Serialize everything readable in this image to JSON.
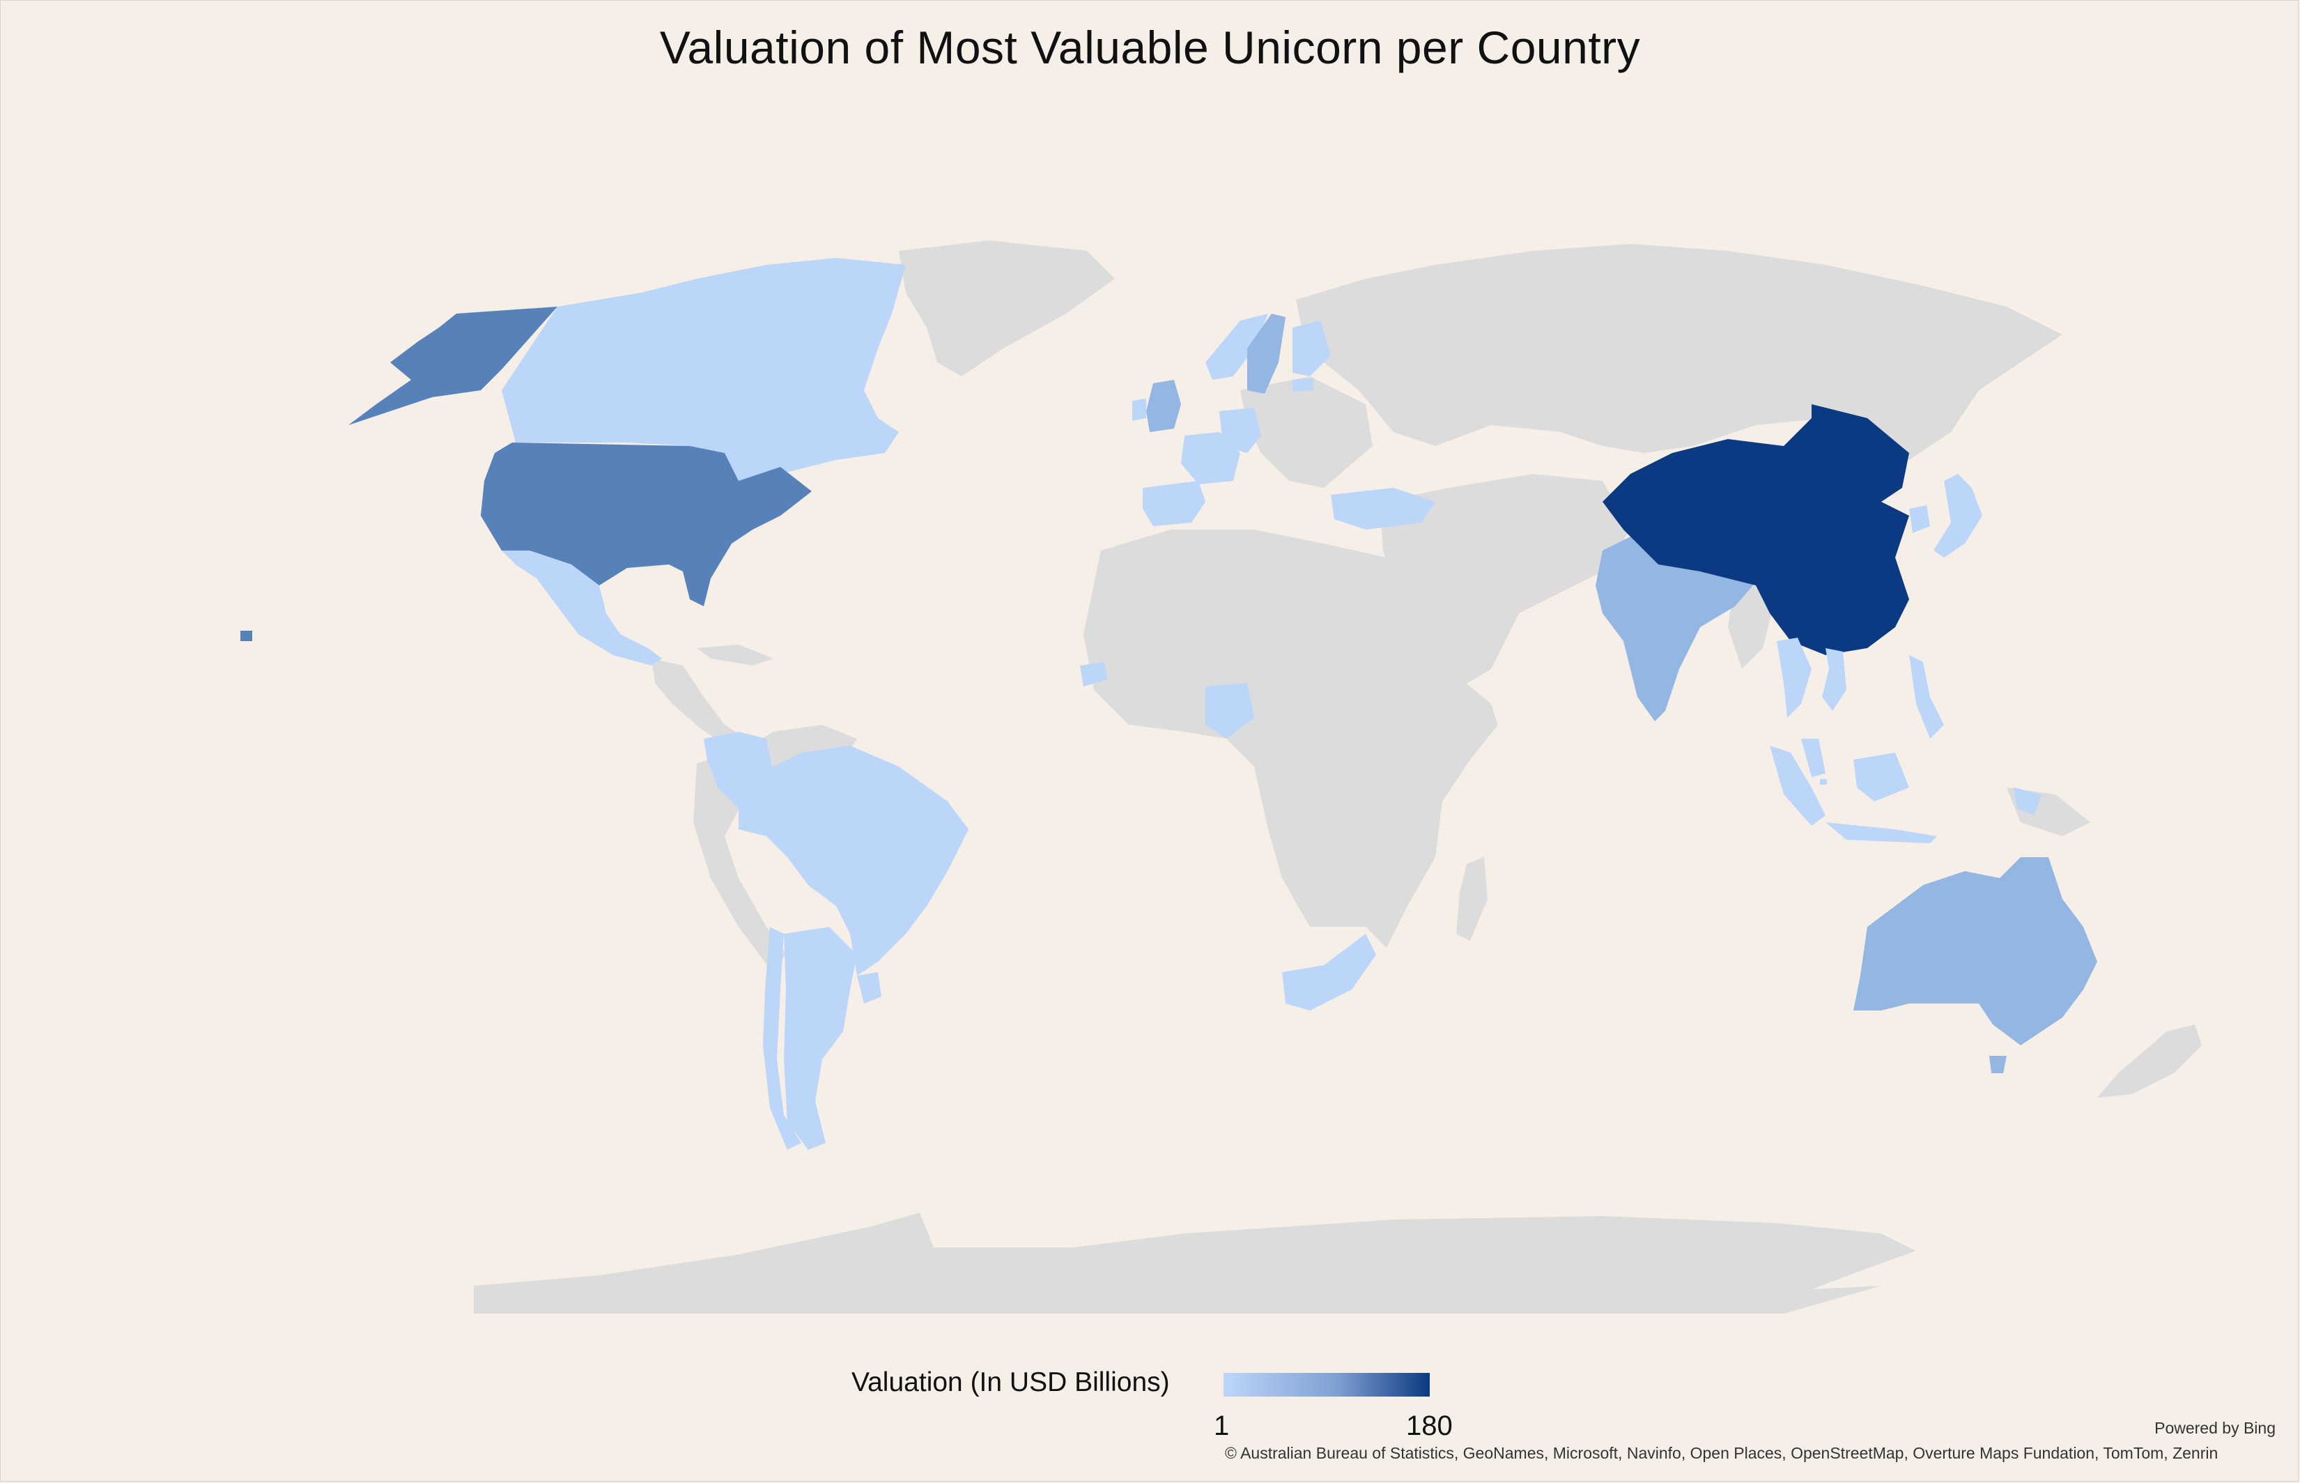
{
  "title": "Valuation of Most Valuable Unicorn per Country",
  "legend": {
    "label": "Valuation (In USD Billions)",
    "min": "1",
    "max": "180",
    "color_low": "#bcd6fa",
    "color_high": "#0b3a82"
  },
  "footer": {
    "powered_by": "Powered by Bing",
    "attribution": "© Australian Bureau of Statistics, GeoNames, Microsoft, Navinfo, Open Places, OpenStreetMap, Overture Maps Fundation, TomTom, Zenrin"
  },
  "colors": {
    "background": "#f5efe8",
    "no_data": "#dcdcdc",
    "light": "#bcd6fa",
    "medium_light": "#93b6e2",
    "medium": "#5681b9",
    "dark": "#0b3a82"
  },
  "regions": [
    {
      "name": "Alaska",
      "shade": "medium"
    },
    {
      "name": "Canada",
      "shade": "light"
    },
    {
      "name": "United States",
      "shade": "medium"
    },
    {
      "name": "Mexico",
      "shade": "light"
    },
    {
      "name": "Colombia",
      "shade": "light"
    },
    {
      "name": "Brazil",
      "shade": "light"
    },
    {
      "name": "Chile",
      "shade": "light"
    },
    {
      "name": "Argentina",
      "shade": "light"
    },
    {
      "name": "Uruguay",
      "shade": "light"
    },
    {
      "name": "United Kingdom",
      "shade": "medium_light"
    },
    {
      "name": "Ireland",
      "shade": "light"
    },
    {
      "name": "Spain",
      "shade": "light"
    },
    {
      "name": "France",
      "shade": "light"
    },
    {
      "name": "Germany",
      "shade": "light"
    },
    {
      "name": "Norway",
      "shade": "light"
    },
    {
      "name": "Sweden",
      "shade": "medium_light"
    },
    {
      "name": "Finland",
      "shade": "light"
    },
    {
      "name": "Estonia",
      "shade": "light"
    },
    {
      "name": "Turkey",
      "shade": "light"
    },
    {
      "name": "Senegal",
      "shade": "light"
    },
    {
      "name": "Nigeria",
      "shade": "light"
    },
    {
      "name": "South Africa",
      "shade": "light"
    },
    {
      "name": "India",
      "shade": "medium_light"
    },
    {
      "name": "China",
      "shade": "dark"
    },
    {
      "name": "Japan",
      "shade": "light"
    },
    {
      "name": "South Korea",
      "shade": "light"
    },
    {
      "name": "Hong Kong",
      "shade": "dark"
    },
    {
      "name": "Thailand",
      "shade": "light"
    },
    {
      "name": "Vietnam",
      "shade": "light"
    },
    {
      "name": "Malaysia",
      "shade": "light"
    },
    {
      "name": "Singapore",
      "shade": "light"
    },
    {
      "name": "Indonesia",
      "shade": "light"
    },
    {
      "name": "Philippines",
      "shade": "light"
    },
    {
      "name": "Australia",
      "shade": "medium_light"
    }
  ]
}
